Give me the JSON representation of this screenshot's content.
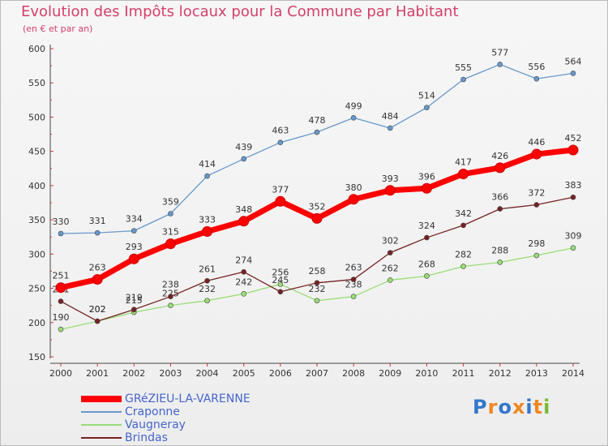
{
  "title": "Evolution des Impôts locaux pour la Commune par Habitant",
  "subtitle": "(en € et par an)",
  "logo": "Proxiti",
  "chart_data": {
    "type": "line",
    "x": [
      "2000",
      "2001",
      "2002",
      "2003",
      "2004",
      "2005",
      "2006",
      "2007",
      "2008",
      "2009",
      "2010",
      "2011",
      "2012",
      "2013",
      "2014"
    ],
    "ylim": [
      150,
      600
    ],
    "yticks": [
      150,
      200,
      250,
      300,
      350,
      400,
      450,
      500,
      550,
      600
    ],
    "grid": false,
    "legend_position": "bottom-left",
    "series": [
      {
        "name": "GRéZIEU-LA-VARENNE",
        "color": "#ff0000",
        "values": [
          251,
          263,
          293,
          315,
          333,
          348,
          377,
          352,
          380,
          393,
          396,
          417,
          426,
          446,
          452
        ]
      },
      {
        "name": "Craponne",
        "color": "#6699cc",
        "values": [
          330,
          331,
          334,
          359,
          414,
          439,
          463,
          478,
          499,
          484,
          514,
          555,
          577,
          556,
          564
        ]
      },
      {
        "name": "Vaugneray",
        "color": "#99dd77",
        "values": [
          190,
          202,
          215,
          225,
          232,
          242,
          256,
          232,
          238,
          262,
          268,
          282,
          288,
          298,
          309
        ]
      },
      {
        "name": "Brindas",
        "color": "#772222",
        "values": [
          231,
          202,
          219,
          238,
          261,
          274,
          245,
          258,
          263,
          302,
          324,
          342,
          366,
          372,
          383
        ]
      }
    ]
  }
}
